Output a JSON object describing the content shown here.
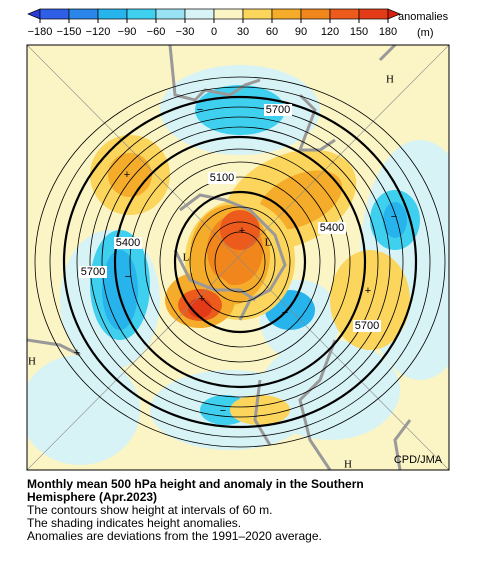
{
  "colorbar": {
    "ticks": [
      {
        "value": -180,
        "label": "−180"
      },
      {
        "value": -150,
        "label": "−150"
      },
      {
        "value": -120,
        "label": "−120"
      },
      {
        "value": -90,
        "label": "−90"
      },
      {
        "value": -60,
        "label": "−60"
      },
      {
        "value": -30,
        "label": "−30"
      },
      0,
      30,
      60,
      90,
      120,
      150,
      180
    ],
    "colors": [
      "#2a3fd8",
      "#2f5fe6",
      "#2b86ea",
      "#27b3ec",
      "#3fd0f0",
      "#98e2f4",
      "#d7f3f6",
      "#fbf4c4",
      "#fbd55c",
      "#f5ac2a",
      "#f1861d",
      "#ec5b1c",
      "#e33a17",
      "#d8200f"
    ],
    "title": "anomalies",
    "unit": "(m)"
  },
  "map": {
    "contour_labels": [
      5700,
      5100,
      5400,
      5400,
      5700,
      5700
    ],
    "highs": [
      "H",
      "H",
      "H"
    ],
    "lows": [
      "L",
      "L"
    ],
    "positive_marks": [
      "+",
      "+",
      "+",
      "+",
      "+"
    ],
    "negative_marks": [
      "−",
      "−",
      "−",
      "−",
      "−"
    ],
    "credit": "CPD/JMA"
  },
  "caption": {
    "title_lines": [
      "Monthly mean 500 hPa height and anomaly in the Southern",
      "Hemisphere (Apr.2023)"
    ],
    "lines": [
      "The contours show height at intervals of 60 m.",
      "The shading indicates height anomalies.",
      "Anomalies are deviations from the 1991–2020 average."
    ]
  }
}
